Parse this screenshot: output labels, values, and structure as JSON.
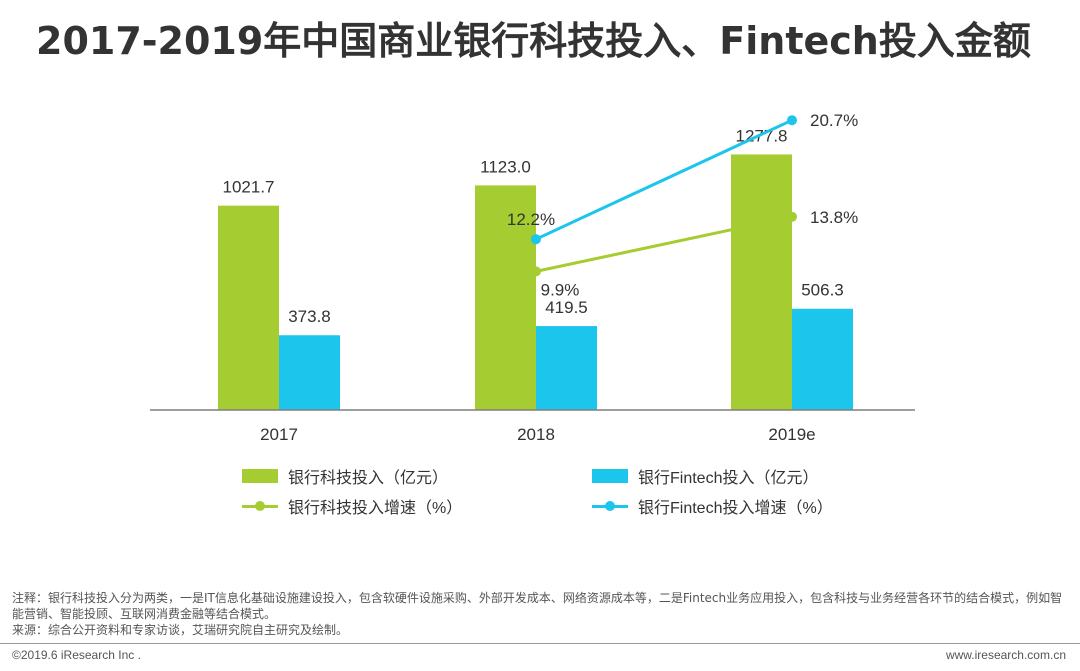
{
  "title": "2017-2019年中国商业银行科技投入、Fintech投入金额",
  "colors": {
    "bank_tech": "#a5cd31",
    "fintech": "#1bc5eb",
    "axis": "#7f7f7f",
    "text": "#333333"
  },
  "chart_data": {
    "type": "bar",
    "categories": [
      "2017",
      "2018",
      "2019e"
    ],
    "series": [
      {
        "name": "银行科技投入（亿元）",
        "kind": "bar",
        "values": [
          1021.7,
          1123.0,
          1277.8
        ],
        "labels": [
          "1021.7",
          "1123.0",
          "1277.8"
        ]
      },
      {
        "name": "银行Fintech投入（亿元）",
        "kind": "bar",
        "values": [
          373.8,
          419.5,
          506.3
        ],
        "labels": [
          "373.8",
          "419.5",
          "506.3"
        ]
      },
      {
        "name": "银行科技投入增速（%）",
        "kind": "line",
        "values": [
          null,
          9.9,
          13.8
        ],
        "labels": [
          "",
          "9.9%",
          "13.8%"
        ]
      },
      {
        "name": "银行Fintech投入增速（%）",
        "kind": "line",
        "values": [
          null,
          12.2,
          20.7
        ],
        "labels": [
          "",
          "12.2%",
          "20.7%"
        ]
      }
    ],
    "bar_ylim": [
      0,
      1750
    ],
    "line_ylim": [
      0,
      25
    ],
    "legend_position": "bottom"
  },
  "legend": {
    "bank_bar": "银行科技投入（亿元）",
    "fintech_bar": "银行Fintech投入（亿元）",
    "bank_line": "银行科技投入增速（%）",
    "fintech_line": "银行Fintech投入增速（%）"
  },
  "notes": {
    "note": "注释：银行科技投入分为两类，一是IT信息化基础设施建设投入，包含软硬件设施采购、外部开发成本、网络资源成本等，二是Fintech业务应用投入，包含科技与业务经营各环节的结合模式，例如智能营销、智能投顾、互联网消费金融等结合模式。",
    "source": "来源：综合公开资料和专家访谈，艾瑞研究院自主研究及绘制。"
  },
  "footer": {
    "copyright": "©2019.6 iResearch Inc .",
    "website": "www.iresearch.com.cn"
  }
}
